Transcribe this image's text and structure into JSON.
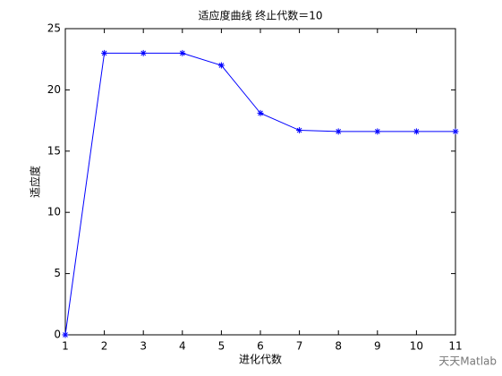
{
  "chart_data": {
    "type": "line",
    "title": "适应度曲线  终止代数＝10",
    "xlabel": "进化代数",
    "ylabel": "适应度",
    "x": [
      1,
      2,
      3,
      4,
      5,
      6,
      7,
      8,
      9,
      10,
      11
    ],
    "values": [
      0,
      23,
      23,
      23,
      22,
      18.1,
      16.7,
      16.6,
      16.6,
      16.6,
      16.6
    ],
    "color": "#0000ff",
    "marker": "*",
    "xlim": [
      1,
      11
    ],
    "xticks": [
      1,
      2,
      3,
      4,
      5,
      6,
      7,
      8,
      9,
      10,
      11
    ],
    "ylim": [
      0,
      25
    ],
    "yticks": [
      0,
      5,
      10,
      15,
      20,
      25
    ],
    "grid": false,
    "watermark": "天天Matlab"
  }
}
